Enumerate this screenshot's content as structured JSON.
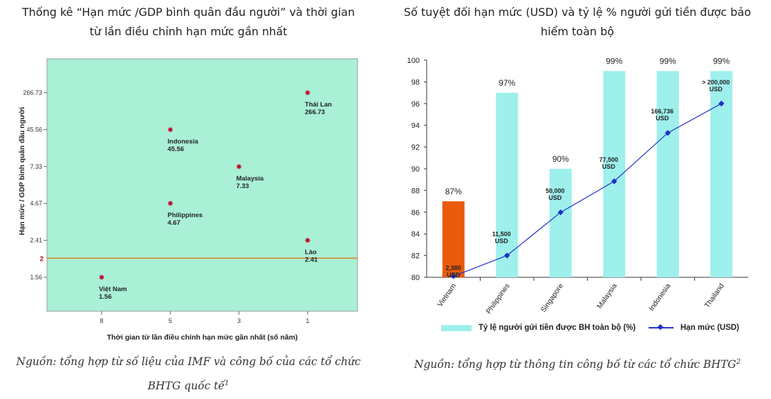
{
  "left": {
    "title_lines": [
      "Thống kê “Hạn mức /GDP bình quân đầu người” và thời gian",
      "từ lần điều chỉnh hạn mức gần nhất"
    ],
    "source_lines": [
      "Nguồn: tổng hợp từ số liệu của IMF và công bố của các tổ chức",
      "BHTG quốc tế"
    ],
    "source_sup": "1"
  },
  "right": {
    "title_lines": [
      "Số tuyệt đối hạn mức (USD) và tỷ lệ % người gửi tiền được bảo",
      "hiểm toàn bộ"
    ],
    "source_line": "Nguồn: tổng hợp từ thông tin công bố từ các tổ chức BHTG",
    "source_sup": "2"
  },
  "colors": {
    "scatter_bg": "#a9f0d6",
    "marker": "#c0132e",
    "threshold_line": "#e07a1e",
    "bar": "#9ef0ec",
    "bar_highlight": "#ea5a0c",
    "line": "#1f2fc9"
  },
  "chart_data": [
    {
      "type": "scatter",
      "xlabel": "Thời gian từ lần điều chỉnh hạn mức gần nhất (số năm)",
      "ylabel": "Hạn mức / GDP bình quân đầu người",
      "x_ticks": [
        "8",
        "5",
        "3",
        "1"
      ],
      "y_ticks": [
        "1.56",
        "2.41",
        "4.67",
        "7.33",
        "45.56",
        "266.73"
      ],
      "threshold": {
        "value": 2,
        "label": "2"
      },
      "points": [
        {
          "name": "Việt Nam",
          "x": 8,
          "y": 1.56,
          "value_label": "1.56"
        },
        {
          "name": "Philippines",
          "x": 5,
          "y": 4.67,
          "value_label": "4.67"
        },
        {
          "name": "Indonesia",
          "x": 5,
          "y": 45.56,
          "value_label": "45.56"
        },
        {
          "name": "Malaysia",
          "x": 3,
          "y": 7.33,
          "value_label": "7.33"
        },
        {
          "name": "Lào",
          "x": 1,
          "y": 2.41,
          "value_label": "2.41"
        },
        {
          "name": "Thái Lan",
          "x": 1,
          "y": 266.73,
          "value_label": "266.73"
        }
      ],
      "grid": false
    },
    {
      "type": "bar",
      "categories": [
        "Vietnam",
        "Philippines",
        "Singapore",
        "Malaysia",
        "Indonesia",
        "Thailand"
      ],
      "ylim": [
        80,
        100
      ],
      "y_ticks": [
        "80",
        "82",
        "84",
        "86",
        "88",
        "90",
        "92",
        "94",
        "96",
        "98",
        "100"
      ],
      "series": [
        {
          "name": "Tỷ lệ người gửi tiền được BH toàn bộ (%)",
          "type": "bar",
          "values": [
            87,
            97,
            90,
            99,
            99,
            99
          ],
          "value_labels": [
            "87%",
            "97%",
            "90%",
            "99%",
            "99%",
            "99%"
          ]
        },
        {
          "name": "Hạn mức (USD)",
          "type": "line",
          "values": [
            2380,
            11500,
            50000,
            77500,
            166736,
            200000
          ],
          "value_labels": [
            [
              "2,380",
              "USD"
            ],
            [
              "11,500",
              "USD"
            ],
            [
              "50,000",
              "USD"
            ],
            [
              "77,500",
              "USD"
            ],
            [
              "166,736",
              "USD"
            ],
            [
              "> 200,000",
              "USD"
            ]
          ]
        }
      ],
      "legend_position": "bottom",
      "grid": false
    }
  ]
}
